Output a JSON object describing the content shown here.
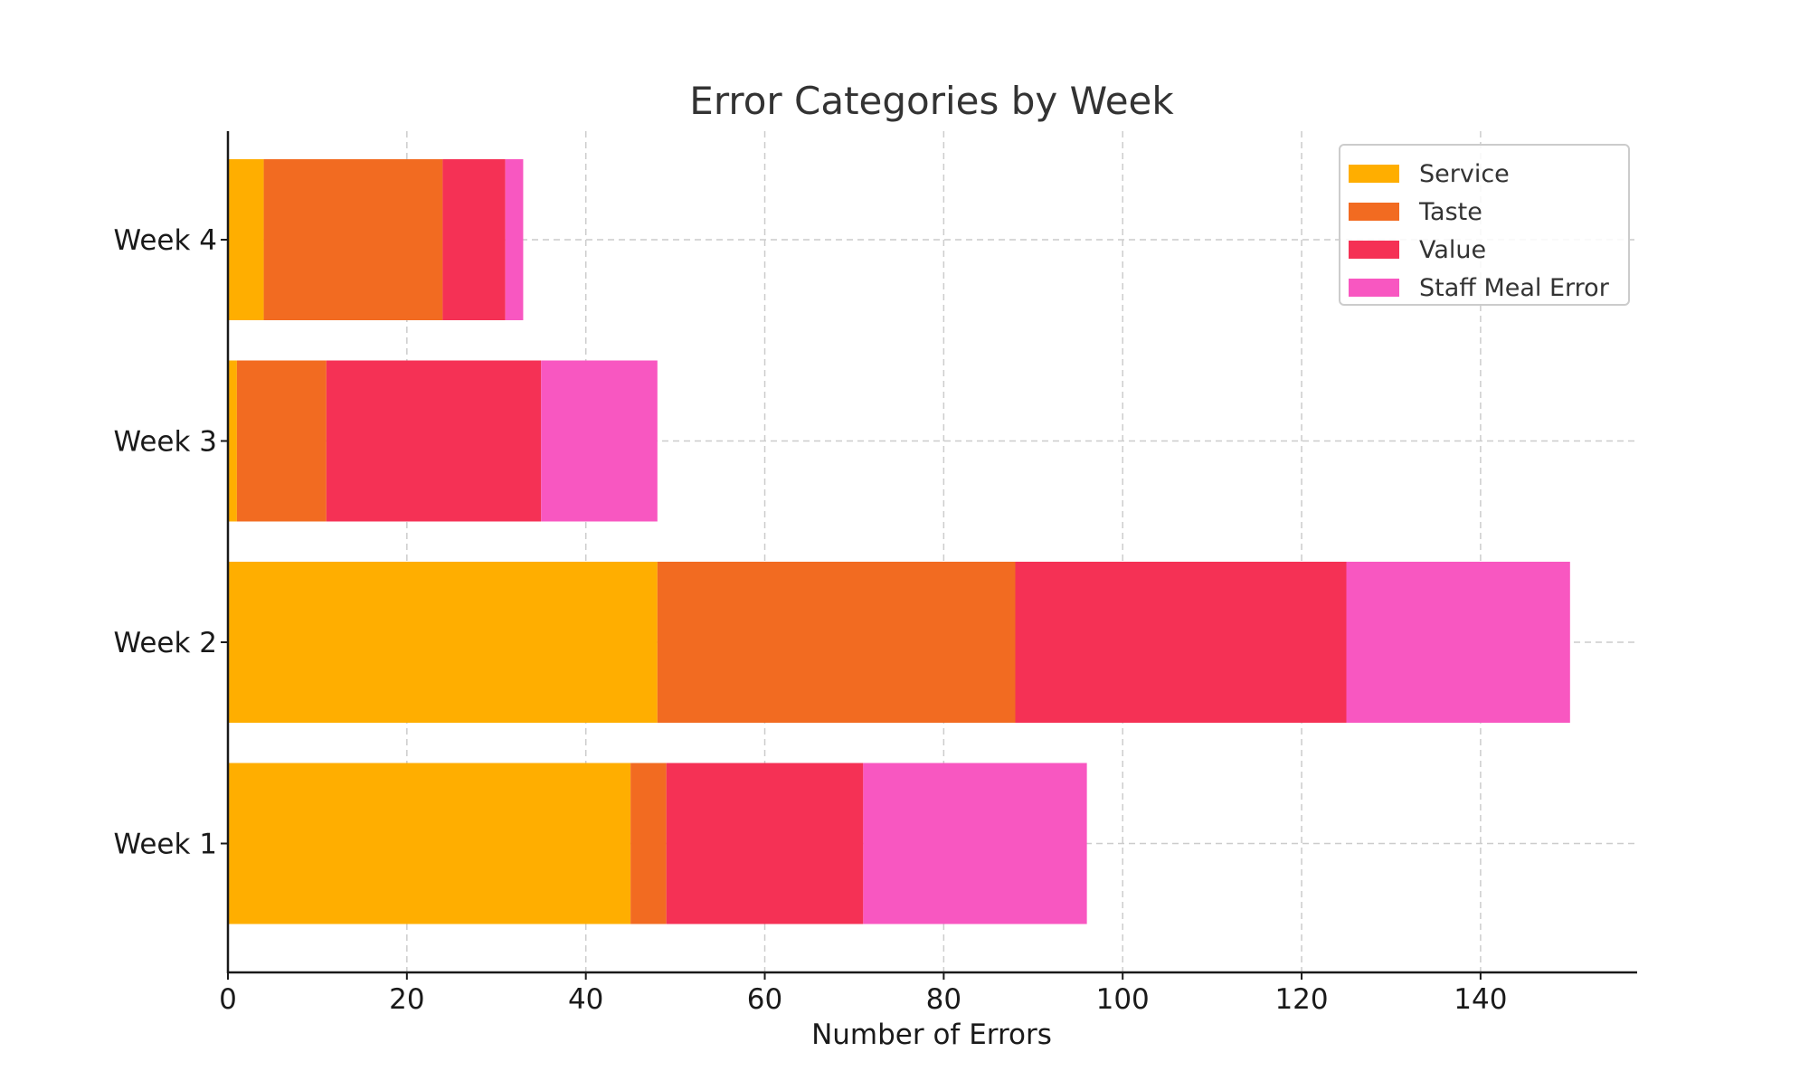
{
  "chart_data": {
    "type": "bar",
    "orientation": "horizontal",
    "stacked": true,
    "title": "Error Categories by Week",
    "xlabel": "Number of Errors",
    "ylabel": "",
    "xlim": [
      0,
      157.5
    ],
    "x_ticks": [
      0,
      20,
      40,
      60,
      80,
      100,
      120,
      140
    ],
    "categories": [
      "Week 1",
      "Week 2",
      "Week 3",
      "Week 4"
    ],
    "series": [
      {
        "name": "Service",
        "color": "#FFAE00",
        "values": [
          45,
          48,
          1,
          4
        ]
      },
      {
        "name": "Taste",
        "color": "#F26B21",
        "values": [
          4,
          40,
          10,
          20
        ]
      },
      {
        "name": "Value",
        "color": "#F53155",
        "values": [
          22,
          37,
          24,
          7
        ]
      },
      {
        "name": "Staff Meal Error",
        "color": "#F857C1",
        "values": [
          25,
          25,
          13,
          2
        ]
      }
    ],
    "grid": true,
    "legend_position": "top-right"
  }
}
